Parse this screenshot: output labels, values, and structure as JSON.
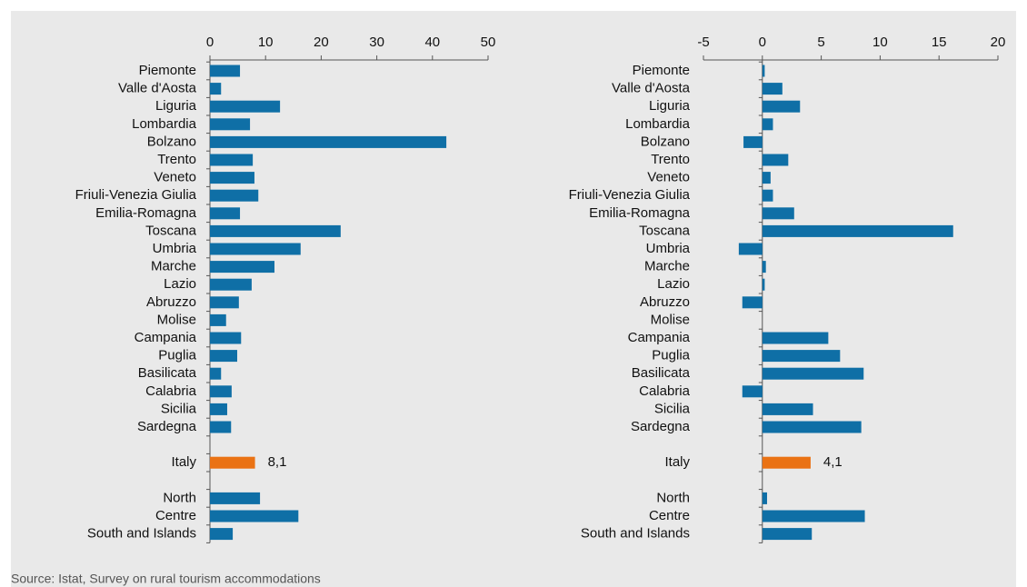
{
  "chart_data": [
    {
      "type": "bar",
      "orientation": "horizontal",
      "categories": [
        "Piemonte",
        "Valle d'Aosta",
        "Liguria",
        "Lombardia",
        "Bolzano",
        "Trento",
        "Veneto",
        "Friuli-Venezia Giulia",
        "Emilia-Romagna",
        "Toscana",
        "Umbria",
        "Marche",
        "Lazio",
        "Abruzzo",
        "Molise",
        "Campania",
        "Puglia",
        "Basilicata",
        "Calabria",
        "Sicilia",
        "Sardegna",
        null,
        "Italy",
        null,
        "North",
        "Centre",
        "South and Islands"
      ],
      "values": [
        5.4,
        2.0,
        12.6,
        7.2,
        42.5,
        7.7,
        8.0,
        8.7,
        5.4,
        23.5,
        16.3,
        11.6,
        7.5,
        5.2,
        2.9,
        5.6,
        4.9,
        2.0,
        3.9,
        3.1,
        3.8,
        null,
        8.1,
        null,
        9.0,
        15.9,
        4.1
      ],
      "value_labels": [
        null,
        null,
        null,
        null,
        null,
        null,
        null,
        null,
        null,
        null,
        null,
        null,
        null,
        null,
        null,
        null,
        null,
        null,
        null,
        null,
        null,
        null,
        "8,1",
        null,
        null,
        null,
        null
      ],
      "colors": [
        "#0f6fa6",
        "#0f6fa6",
        "#0f6fa6",
        "#0f6fa6",
        "#0f6fa6",
        "#0f6fa6",
        "#0f6fa6",
        "#0f6fa6",
        "#0f6fa6",
        "#0f6fa6",
        "#0f6fa6",
        "#0f6fa6",
        "#0f6fa6",
        "#0f6fa6",
        "#0f6fa6",
        "#0f6fa6",
        "#0f6fa6",
        "#0f6fa6",
        "#0f6fa6",
        "#0f6fa6",
        "#0f6fa6",
        null,
        "#ea7214",
        null,
        "#0f6fa6",
        "#0f6fa6",
        "#0f6fa6"
      ],
      "xlim": [
        0,
        50
      ],
      "xticks": [
        0,
        10,
        20,
        30,
        40,
        50
      ]
    },
    {
      "type": "bar",
      "orientation": "horizontal",
      "categories": [
        "Piemonte",
        "Valle d'Aosta",
        "Liguria",
        "Lombardia",
        "Bolzano",
        "Trento",
        "Veneto",
        "Friuli-Venezia Giulia",
        "Emilia-Romagna",
        "Toscana",
        "Umbria",
        "Marche",
        "Lazio",
        "Abruzzo",
        "Molise",
        "Campania",
        "Puglia",
        "Basilicata",
        "Calabria",
        "Sicilia",
        "Sardegna",
        null,
        "Italy",
        null,
        "North",
        "Centre",
        "South and Islands"
      ],
      "values": [
        0.2,
        1.7,
        3.2,
        0.9,
        -1.6,
        2.2,
        0.7,
        0.9,
        2.7,
        16.2,
        -2.0,
        0.3,
        0.2,
        -1.7,
        0,
        5.6,
        6.6,
        8.6,
        -1.7,
        4.3,
        8.4,
        null,
        4.1,
        null,
        0.4,
        8.7,
        4.2
      ],
      "value_labels": [
        null,
        null,
        null,
        null,
        null,
        null,
        null,
        null,
        null,
        null,
        null,
        null,
        null,
        null,
        null,
        null,
        null,
        null,
        null,
        null,
        null,
        null,
        "4,1",
        null,
        null,
        null,
        null
      ],
      "colors": [
        "#0f6fa6",
        "#0f6fa6",
        "#0f6fa6",
        "#0f6fa6",
        "#0f6fa6",
        "#0f6fa6",
        "#0f6fa6",
        "#0f6fa6",
        "#0f6fa6",
        "#0f6fa6",
        "#0f6fa6",
        "#0f6fa6",
        "#0f6fa6",
        "#0f6fa6",
        "#0f6fa6",
        "#0f6fa6",
        "#0f6fa6",
        "#0f6fa6",
        "#0f6fa6",
        "#0f6fa6",
        "#0f6fa6",
        null,
        "#ea7214",
        null,
        "#0f6fa6",
        "#0f6fa6",
        "#0f6fa6"
      ],
      "xlim": [
        -5,
        20
      ],
      "xticks": [
        -5,
        0,
        5,
        10,
        15,
        20
      ]
    }
  ],
  "source": "Source: Istat, Survey on rural tourism accommodations"
}
